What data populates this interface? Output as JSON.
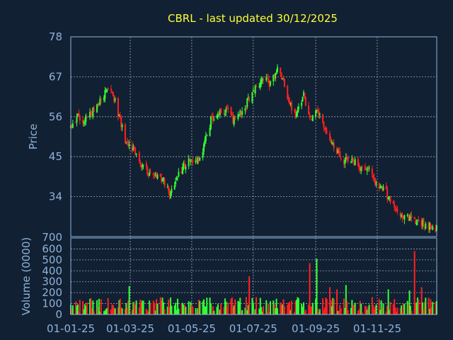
{
  "chart_data": {
    "type": "candlestick",
    "title": "CBRL - last updated 30/12/2025",
    "price_panel": {
      "ylabel": "Price",
      "ylim": [
        23,
        78
      ],
      "yticks": [
        78,
        67,
        56,
        45,
        34
      ],
      "bottom_tick_label": "700"
    },
    "volume_panel": {
      "ylabel": "Volume (0000)",
      "ylim": [
        0,
        700
      ],
      "yticks": [
        600,
        500,
        400,
        300,
        200,
        100,
        0
      ]
    },
    "x_tick_labels": [
      "01-01-25",
      "01-03-25",
      "01-05-25",
      "01-07-25",
      "01-09-25",
      "01-11-25"
    ],
    "x_tick_dates": [
      "2025-01-01",
      "2025-03-01",
      "2025-05-01",
      "2025-07-01",
      "2025-09-01",
      "2025-11-01"
    ],
    "x_range": [
      "2025-01-01",
      "2025-12-30"
    ],
    "grid": true,
    "colors": {
      "up": "#33ff33",
      "down": "#ff2020",
      "title": "#ffff33",
      "axis": "#8fb3d9",
      "background": "#112033"
    },
    "price_path": [
      [
        "2025-01-01",
        53
      ],
      [
        "2025-01-08",
        56
      ],
      [
        "2025-01-15",
        55
      ],
      [
        "2025-01-22",
        57
      ],
      [
        "2025-02-01",
        61
      ],
      [
        "2025-02-08",
        64
      ],
      [
        "2025-02-12",
        62
      ],
      [
        "2025-02-18",
        56
      ],
      [
        "2025-02-25",
        49
      ],
      [
        "2025-03-05",
        47
      ],
      [
        "2025-03-12",
        43
      ],
      [
        "2025-03-18",
        41
      ],
      [
        "2025-03-25",
        40
      ],
      [
        "2025-04-02",
        39
      ],
      [
        "2025-04-09",
        35
      ],
      [
        "2025-04-15",
        39
      ],
      [
        "2025-04-22",
        42
      ],
      [
        "2025-04-30",
        44
      ],
      [
        "2025-05-06",
        43
      ],
      [
        "2025-05-13",
        48
      ],
      [
        "2025-05-20",
        55
      ],
      [
        "2025-05-27",
        57
      ],
      [
        "2025-06-05",
        58
      ],
      [
        "2025-06-12",
        55
      ],
      [
        "2025-06-20",
        58
      ],
      [
        "2025-06-28",
        61
      ],
      [
        "2025-07-05",
        65
      ],
      [
        "2025-07-12",
        67
      ],
      [
        "2025-07-18",
        65
      ],
      [
        "2025-07-24",
        69
      ],
      [
        "2025-07-30",
        67
      ],
      [
        "2025-08-05",
        60
      ],
      [
        "2025-08-12",
        56
      ],
      [
        "2025-08-20",
        62
      ],
      [
        "2025-08-27",
        55
      ],
      [
        "2025-09-03",
        58
      ],
      [
        "2025-09-10",
        52
      ],
      [
        "2025-09-18",
        49
      ],
      [
        "2025-09-26",
        44
      ],
      [
        "2025-10-03",
        44
      ],
      [
        "2025-10-10",
        44
      ],
      [
        "2025-10-17",
        41
      ],
      [
        "2025-10-24",
        42
      ],
      [
        "2025-11-01",
        37
      ],
      [
        "2025-11-10",
        35
      ],
      [
        "2025-11-18",
        31
      ],
      [
        "2025-11-26",
        28
      ],
      [
        "2025-12-05",
        28
      ],
      [
        "2025-12-12",
        27
      ],
      [
        "2025-12-20",
        26
      ],
      [
        "2025-12-30",
        25
      ]
    ],
    "volume_spikes": [
      [
        "2025-02-28",
        260
      ],
      [
        "2025-03-22",
        240
      ],
      [
        "2025-04-05",
        170
      ],
      [
        "2025-06-27",
        350
      ],
      [
        "2025-08-26",
        470
      ],
      [
        "2025-09-02",
        510
      ],
      [
        "2025-09-06",
        490
      ],
      [
        "2025-09-15",
        250
      ],
      [
        "2025-09-22",
        230
      ],
      [
        "2025-10-01",
        270
      ],
      [
        "2025-11-12",
        230
      ],
      [
        "2025-11-22",
        240
      ],
      [
        "2025-12-03",
        220
      ],
      [
        "2025-12-06",
        680
      ],
      [
        "2025-12-08",
        580
      ],
      [
        "2025-12-15",
        250
      ]
    ],
    "volume_typical": [
      20,
      160
    ]
  }
}
